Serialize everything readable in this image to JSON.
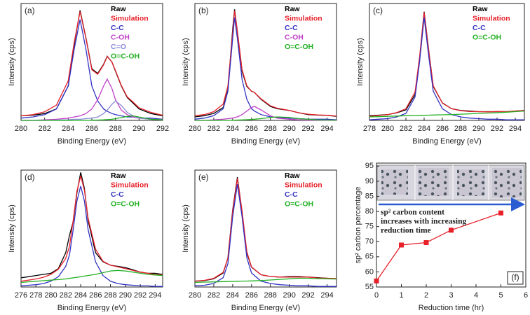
{
  "chart_data": [
    {
      "type": "line",
      "label": "(a)",
      "xlabel": "Binding Energy (eV)",
      "ylabel": "Intensity (cps)",
      "xlim": [
        280,
        292
      ],
      "xticks": [
        280,
        282,
        284,
        286,
        288,
        290,
        292
      ],
      "ylim": [
        0,
        102
      ],
      "x": [
        280,
        281,
        282,
        283,
        284,
        284.5,
        285,
        285.5,
        286,
        286.5,
        287,
        287.3,
        287.7,
        288,
        288.5,
        289,
        289.5,
        290,
        291,
        292
      ],
      "series": [
        {
          "name": "Raw",
          "color": "#000000",
          "values": [
            4,
            4.5,
            6,
            10,
            30,
            66,
            96,
            72,
            45,
            41,
            49,
            56,
            51,
            43,
            30,
            20,
            15,
            10,
            6,
            4
          ]
        },
        {
          "name": "Simulation",
          "color": "#e8202a",
          "values": [
            4,
            5,
            7.5,
            13.3,
            34.5,
            68,
            95,
            71.5,
            44.2,
            40.3,
            48.5,
            55.7,
            51,
            43.5,
            30.5,
            20.5,
            16,
            11,
            7,
            4.5
          ]
        },
        {
          "name": "C-C",
          "color": "#3333c4",
          "values": [
            2,
            3,
            5,
            10,
            30,
            62,
            88,
            62,
            30,
            17,
            10,
            8,
            6,
            5,
            4,
            3,
            3,
            2,
            2,
            1
          ]
        },
        {
          "name": "C-OH",
          "color": "#c040c8",
          "values": [
            0,
            0,
            0.5,
            1,
            2,
            3,
            4,
            6,
            10,
            18,
            30,
            36,
            28,
            18,
            9,
            5,
            3,
            2,
            1,
            0.5
          ]
        },
        {
          "name": "C=O",
          "color": "#8a8ad6",
          "values": [
            0,
            0,
            0,
            0.3,
            0.5,
            1,
            1,
            1.5,
            2,
            3,
            6,
            9,
            14,
            17,
            13,
            7,
            4,
            2,
            1,
            0.5
          ]
        },
        {
          "name": "O=C-OH",
          "color": "#22b022",
          "values": [
            0,
            0,
            0,
            0,
            0,
            0,
            0,
            0,
            0.2,
            0.3,
            0.5,
            0.7,
            1,
            1.5,
            2.5,
            3.5,
            4,
            3,
            1,
            0.5
          ]
        }
      ]
    },
    {
      "type": "line",
      "label": "(b)",
      "xlabel": "Binding Energy (eV)",
      "ylabel": "Intensity (cps)",
      "xlim": [
        280,
        295
      ],
      "xticks": [
        280,
        282,
        284,
        286,
        288,
        290,
        292,
        294
      ],
      "ylim": [
        0,
        100
      ],
      "x": [
        280,
        281,
        282,
        283,
        283.5,
        284,
        284.2,
        284.5,
        285,
        285.5,
        286,
        286.3,
        287,
        288,
        288.7,
        290,
        291,
        292,
        293,
        294,
        295
      ],
      "series": [
        {
          "name": "Raw",
          "color": "#000000",
          "values": [
            3,
            4,
            6,
            11,
            26,
            78,
            95,
            76,
            42,
            29,
            25,
            24,
            18,
            12,
            10,
            8.5,
            6.5,
            5,
            4.5,
            4.3,
            3.5
          ]
        },
        {
          "name": "Simulation",
          "color": "#e8202a",
          "values": [
            4,
            5,
            7.5,
            14,
            29.5,
            75.2,
            93.7,
            76.3,
            43.4,
            29.6,
            24.8,
            24,
            18.5,
            12.5,
            10.5,
            8.5,
            6.5,
            5.3,
            4.7,
            4.4,
            3.7
          ]
        },
        {
          "name": "C-C",
          "color": "#3333c4",
          "values": [
            1,
            2,
            4,
            10,
            25,
            70,
            88,
            70,
            35,
            18,
            10,
            8,
            5,
            3,
            2.5,
            2,
            1.5,
            1,
            1,
            1,
            0.5
          ]
        },
        {
          "name": "C-OH",
          "color": "#c040c8",
          "values": [
            0,
            0,
            0.5,
            1,
            1.5,
            2,
            2.5,
            3,
            5,
            8,
            11,
            12,
            9,
            4,
            2,
            1,
            0.5,
            0.3,
            0.2,
            0.1,
            0
          ]
        },
        {
          "name": "O=C-OH",
          "color": "#22b022",
          "values": [
            0,
            0,
            0,
            0,
            0,
            0.2,
            0.2,
            0.3,
            0.4,
            0.6,
            0.8,
            1,
            1.5,
            2.5,
            3,
            2.5,
            1.5,
            1,
            0.5,
            0.3,
            0.2
          ]
        }
      ]
    },
    {
      "type": "line",
      "label": "(c)",
      "xlabel": "Binding Energy (eV)",
      "ylabel": "Intensity (cps)",
      "xlim": [
        278,
        295
      ],
      "xticks": [
        278,
        280,
        282,
        284,
        286,
        288,
        290,
        292,
        294
      ],
      "ylim": [
        0,
        100
      ],
      "x": [
        278,
        279,
        280,
        281,
        282,
        283,
        283.5,
        284,
        284.5,
        285,
        286,
        287,
        288,
        289,
        290,
        291,
        292,
        293,
        294,
        295
      ],
      "series": [
        {
          "name": "Raw",
          "color": "#000000",
          "values": [
            4,
            4.5,
            5,
            6.5,
            9,
            22,
            53,
            93,
            60,
            29,
            15,
            10,
            8.5,
            8,
            7.5,
            7.5,
            7.5,
            7.5,
            8,
            8.5
          ]
        },
        {
          "name": "Simulation",
          "color": "#e8202a",
          "values": [
            3.5,
            4.2,
            5,
            6.7,
            10,
            24.2,
            54.3,
            92.4,
            59.5,
            29.6,
            14.8,
            10,
            8.3,
            7.6,
            7.5,
            7.3,
            7.6,
            7.5,
            8,
            8.5
          ]
        },
        {
          "name": "C-C",
          "color": "#3333c4",
          "values": [
            0.5,
            1,
            1.5,
            3,
            6,
            20,
            50,
            88,
            55,
            25,
            10,
            5,
            3,
            2,
            1.5,
            1,
            1,
            0.5,
            0.5,
            0.5
          ]
        },
        {
          "name": "O=C-OH",
          "color": "#22b022",
          "values": [
            3,
            3.2,
            3.5,
            3.7,
            4,
            4.2,
            4.3,
            4.4,
            4.5,
            4.6,
            4.8,
            5,
            5.3,
            5.6,
            6,
            6.3,
            6.6,
            7,
            7.5,
            8
          ]
        }
      ]
    },
    {
      "type": "line",
      "label": "(d)",
      "xlabel": "Binding Energy (eV)",
      "ylabel": "Intensity (cps)",
      "xlim": [
        276,
        295
      ],
      "xticks": [
        276,
        278,
        280,
        282,
        284,
        286,
        288,
        290,
        292,
        294
      ],
      "ylim": [
        0,
        102
      ],
      "x": [
        276,
        277,
        278,
        279,
        280,
        281,
        282,
        282.5,
        283,
        283.5,
        284,
        284.5,
        285,
        286,
        287,
        288,
        289,
        290,
        291,
        292,
        293,
        294,
        295
      ],
      "series": [
        {
          "name": "Raw",
          "color": "#000000",
          "values": [
            8,
            9,
            10,
            11,
            12,
            16,
            30,
            45,
            57,
            82,
            100,
            86,
            58,
            30,
            22,
            19,
            18,
            17,
            15,
            13,
            12,
            12,
            11
          ]
        },
        {
          "name": "Simulation",
          "color": "#e8202a",
          "values": [
            5,
            6,
            7,
            8.5,
            11,
            15.5,
            25,
            35.5,
            58,
            83.5,
            97,
            84.5,
            60,
            33,
            22.5,
            19,
            17.5,
            16,
            14.5,
            13,
            12,
            11,
            10.5
          ]
        },
        {
          "name": "C-C",
          "color": "#3333c4",
          "values": [
            1,
            1.5,
            2,
            3,
            5,
            9,
            18,
            28,
            50,
            75,
            88,
            75,
            50,
            22,
            10,
            5,
            3,
            2,
            1.5,
            1,
            1,
            0.5,
            0.5
          ]
        },
        {
          "name": "O=C-OH",
          "color": "#22b022",
          "values": [
            4,
            4.5,
            5,
            5.5,
            6,
            6.5,
            7,
            7.5,
            8,
            8.5,
            9,
            9.5,
            10,
            11,
            12.5,
            14,
            14.5,
            14,
            13,
            12,
            11,
            10.5,
            10
          ]
        }
      ]
    },
    {
      "type": "line",
      "label": "(e)",
      "xlabel": "Binding Energy (eV)",
      "ylabel": "Intensity (cps)",
      "xlim": [
        280,
        295
      ],
      "xticks": [
        280,
        282,
        284,
        286,
        288,
        290,
        292,
        294
      ],
      "ylim": [
        0,
        100
      ],
      "x": [
        280,
        281,
        282,
        283,
        283.5,
        284,
        284.5,
        285,
        285.5,
        286,
        287,
        288,
        289,
        290,
        291,
        292,
        293,
        294,
        295
      ],
      "series": [
        {
          "name": "Raw",
          "color": "#000000",
          "values": [
            5,
            5.5,
            7,
            12,
            25,
            66,
            94,
            64,
            29,
            17,
            10.5,
            9,
            8.5,
            9,
            9,
            8.5,
            8,
            7.5,
            7
          ]
        },
        {
          "name": "Simulation",
          "color": "#e8202a",
          "values": [
            5,
            5.7,
            7.4,
            12.6,
            24.7,
            64.8,
            92.9,
            65,
            30.1,
            17.2,
            10.5,
            9,
            8.5,
            8.5,
            8.5,
            8.5,
            7.7,
            7.5,
            7.3
          ]
        },
        {
          "name": "C-C",
          "color": "#3333c4",
          "values": [
            1,
            1.5,
            3,
            8,
            20,
            60,
            88,
            60,
            25,
            12,
            5,
            3,
            2,
            1.5,
            1,
            1,
            0.5,
            0.5,
            0.5
          ]
        },
        {
          "name": "O=C-OH",
          "color": "#22b022",
          "values": [
            4,
            4.2,
            4.4,
            4.6,
            4.7,
            4.8,
            4.9,
            5,
            5.1,
            5.2,
            5.5,
            6,
            6.5,
            7,
            7.5,
            7.5,
            7.2,
            7,
            6.8
          ]
        }
      ]
    },
    {
      "type": "line",
      "label": "(f)",
      "xlabel": "Reduction time (hr)",
      "ylabel": "sp² carbon percentage",
      "xlim": [
        0,
        6
      ],
      "xticks": [
        0,
        1,
        2,
        3,
        4,
        5,
        6
      ],
      "ylim": [
        55,
        96
      ],
      "yticks": [
        55,
        60,
        65,
        70,
        75,
        80,
        85,
        90,
        95
      ],
      "x": [
        0,
        1,
        2,
        3,
        5
      ],
      "values": [
        57,
        68.9,
        69.7,
        73.8,
        79.5
      ],
      "color": "#e8202a",
      "marker": "square",
      "annotation": [
        "sp² carbon content",
        "increases with increasing",
        "reduction time"
      ]
    }
  ]
}
